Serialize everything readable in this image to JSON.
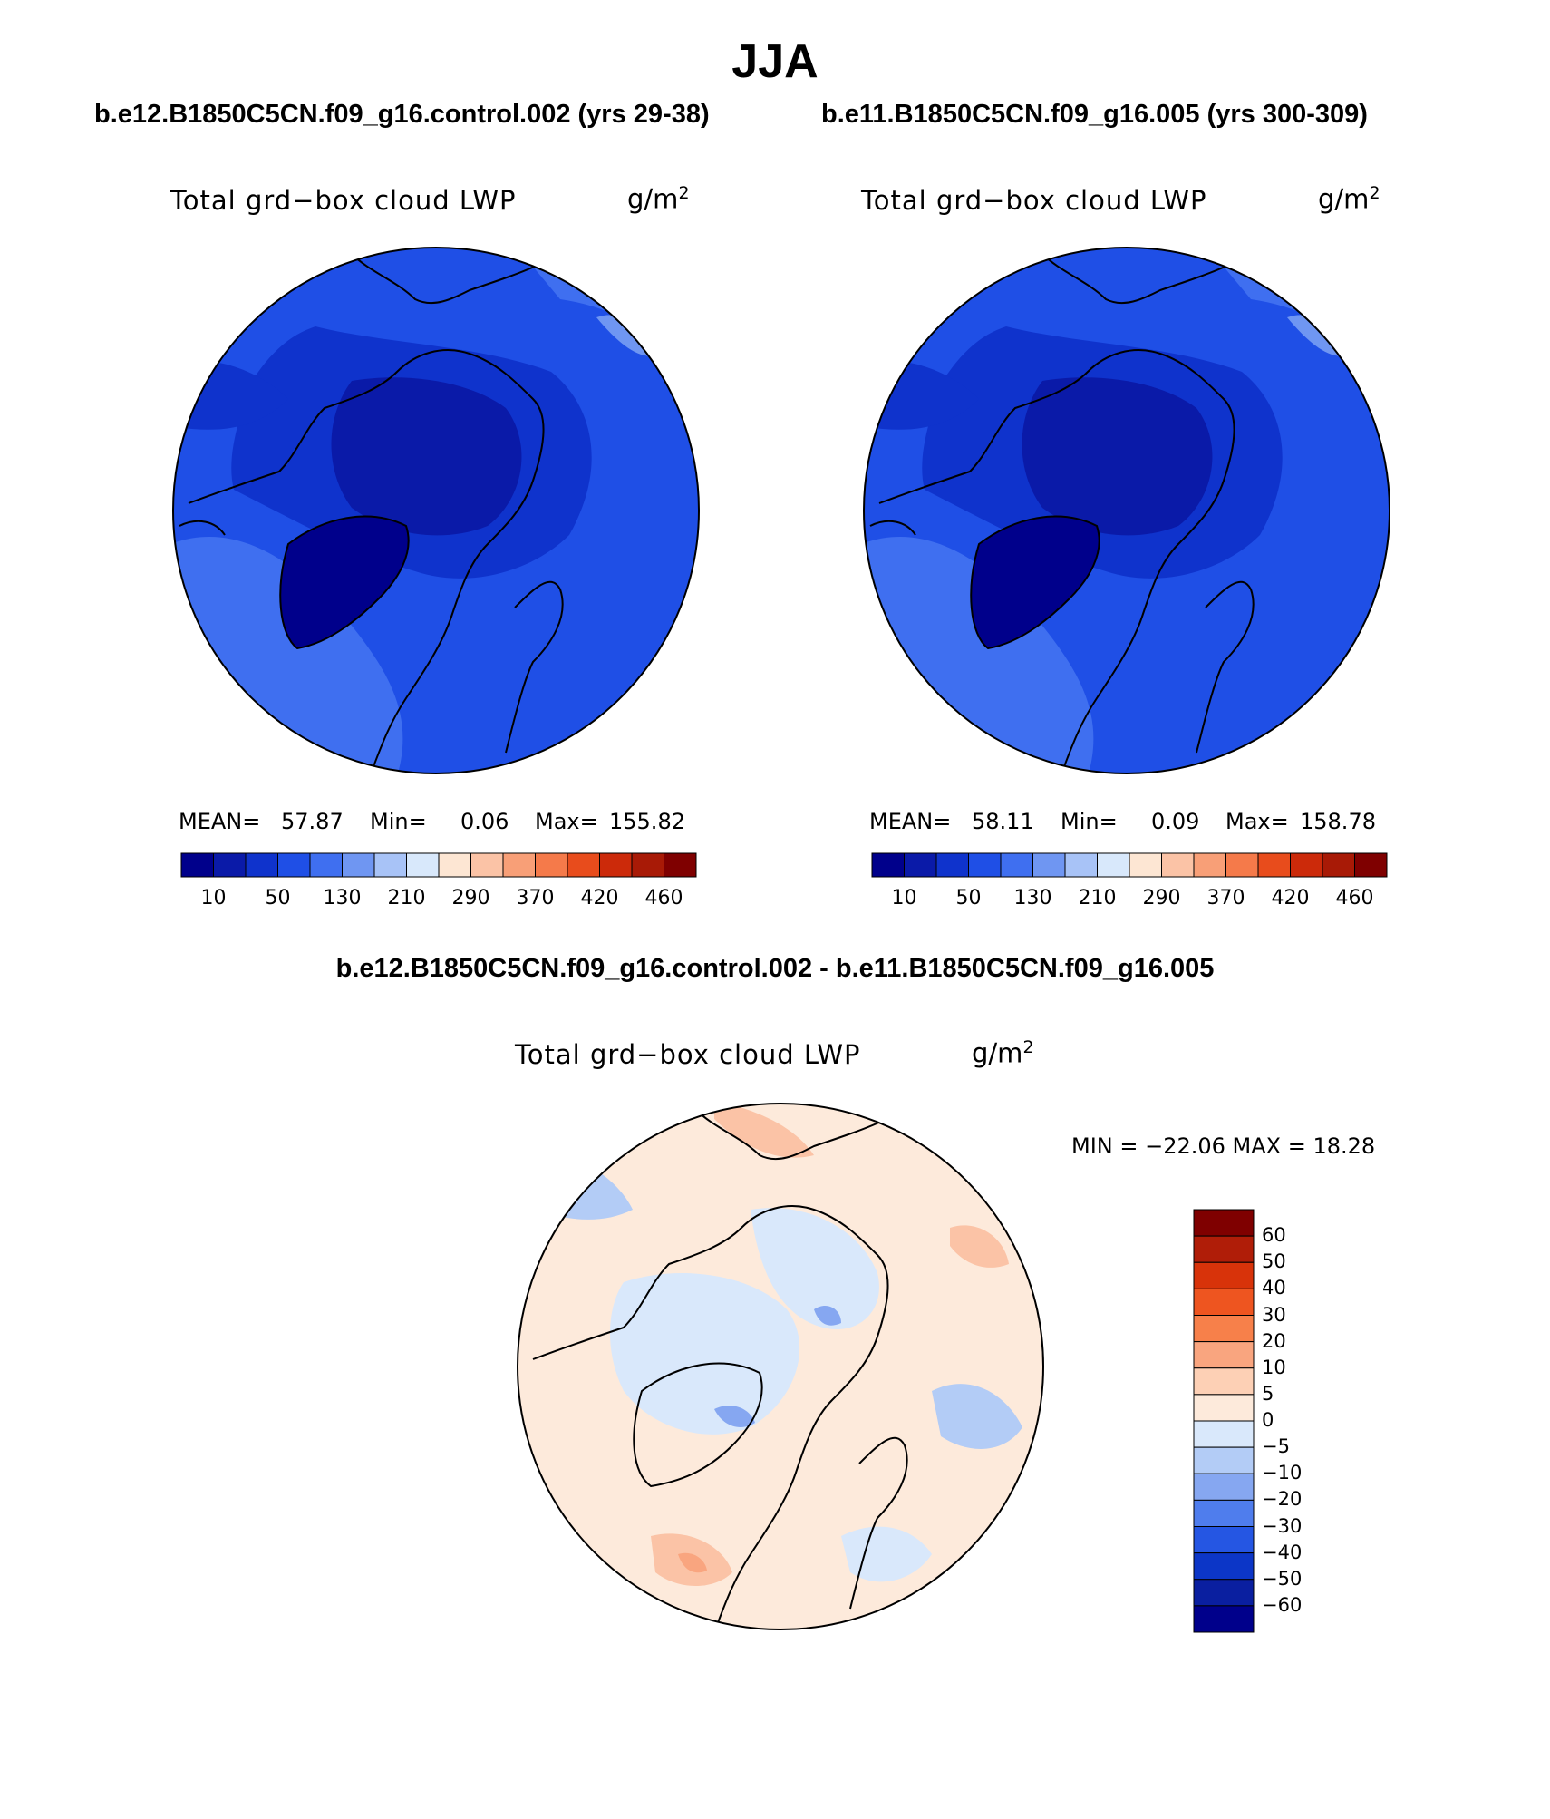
{
  "figure": {
    "season": "JJA",
    "difference_title": "b.e12.B1850C5CN.f09_g16.control.002 - b.e11.B1850C5CN.f09_g16.005"
  },
  "panels": [
    {
      "case_title": "b.e12.B1850C5CN.f09_g16.control.002 (yrs 29-38)",
      "variable": "Total grd−box cloud LWP",
      "units_base": "g/m",
      "units_exp": "2",
      "mean_label": "MEAN=",
      "mean": "57.87",
      "min_label": "Min=",
      "min": "0.06",
      "max_label": "Max=",
      "max": "155.82"
    },
    {
      "case_title": "b.e11.B1850C5CN.f09_g16.005 (yrs 300-309)",
      "variable": "Total grd−box cloud LWP",
      "units_base": "g/m",
      "units_exp": "2",
      "mean_label": "MEAN=",
      "mean": "58.11",
      "min_label": "Min=",
      "min": "0.09",
      "max_label": "Max=",
      "max": "158.78"
    }
  ],
  "difference_panel": {
    "variable": "Total grd−box cloud LWP",
    "units_base": "g/m",
    "units_exp": "2",
    "stats": "MIN = −22.06 MAX =   18.28"
  },
  "colorbar_main": {
    "labels": [
      "10",
      "50",
      "130",
      "210",
      "290",
      "370",
      "420",
      "460"
    ],
    "colors": [
      "#00008b",
      "#0a1aa8",
      "#0f33cc",
      "#1f4fe6",
      "#3f6ff0",
      "#6f96f2",
      "#a8c3f7",
      "#d8e8fb",
      "#fde6d3",
      "#fbc3a6",
      "#f89f77",
      "#f57a4a",
      "#e84c1c",
      "#cc2a0a",
      "#a81a06",
      "#7f0000"
    ]
  },
  "colorbar_diff": {
    "labels": [
      "60",
      "50",
      "40",
      "30",
      "20",
      "10",
      "5",
      "0",
      "−5",
      "−10",
      "−20",
      "−30",
      "−40",
      "−50",
      "−60"
    ],
    "colors": [
      "#7f0000",
      "#b01d08",
      "#d8330a",
      "#ee5520",
      "#f7804a",
      "#f9a57f",
      "#fdd0b5",
      "#fdeadb",
      "#d9e8fb",
      "#b3ccf6",
      "#86a7f1",
      "#4f7ded",
      "#2556e3",
      "#0c36c7",
      "#0a1fa0",
      "#00008b"
    ]
  },
  "map_colors": {
    "field_dark": "#0a1aa8",
    "field_mid": "#0f33cc",
    "field_main": "#1f4fe6",
    "field_light": "#3f6ff0",
    "field_pale": "#6f96f2",
    "diff_neutral_warm": "#fdeadb",
    "diff_neutral_cool": "#d9e8fb",
    "diff_warm": "#fbc3a6",
    "diff_cool": "#b3ccf6",
    "diff_cool2": "#86a7f1",
    "diff_warm2": "#f9a57f"
  }
}
